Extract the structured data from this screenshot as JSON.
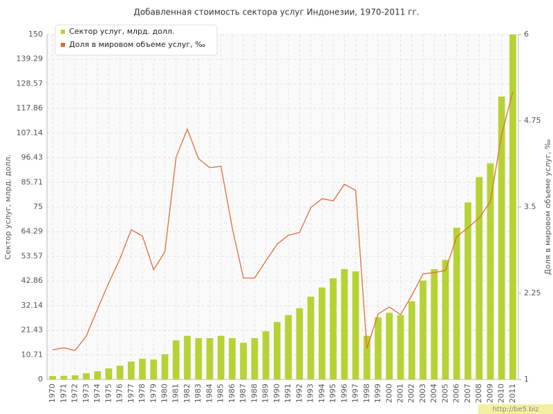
{
  "chart_data": {
    "type": "bar-line",
    "title": "Добавленная стоимость сектора услуг Индонезии, 1970-2011 гг.",
    "y_label": "Сектор услуг, млрд. долл.",
    "y2_label": "Доля в мировом объеме услуг, ‰",
    "watermark": "http://be5.biz",
    "categories": [
      "1970",
      "1971",
      "1972",
      "1973",
      "1974",
      "1975",
      "1976",
      "1977",
      "1978",
      "1979",
      "1980",
      "1981",
      "1982",
      "1983",
      "1984",
      "1985",
      "1986",
      "1987",
      "1988",
      "1989",
      "1990",
      "1991",
      "1992",
      "1993",
      "1994",
      "1995",
      "1996",
      "1997",
      "1998",
      "1999",
      "2000",
      "2001",
      "2002",
      "2003",
      "2004",
      "2005",
      "2006",
      "2007",
      "2008",
      "2009",
      "2010",
      "2011"
    ],
    "series": [
      {
        "name": "Сектор услуг, млрд. долл.",
        "type": "bar",
        "color": "#b5d334",
        "values": [
          1.5,
          1.6,
          1.8,
          2.7,
          3.6,
          4.8,
          6,
          7.8,
          9,
          8.7,
          11,
          17,
          19,
          18,
          18,
          19,
          18,
          16,
          18,
          21,
          25,
          28,
          31,
          36,
          40,
          44,
          48,
          47,
          19,
          27,
          29,
          28,
          34,
          43,
          48,
          52,
          66,
          77,
          88,
          94,
          123,
          150
        ]
      },
      {
        "name": "Доля в мировом объеме услуг, ‰",
        "type": "line",
        "axis": "y2",
        "color": "#e06a3b",
        "values": [
          1.43,
          1.46,
          1.42,
          1.63,
          2.02,
          2.4,
          2.75,
          3.17,
          3.08,
          2.59,
          2.85,
          4.22,
          4.63,
          4.2,
          4.07,
          4.09,
          3.2,
          2.47,
          2.47,
          2.72,
          2.96,
          3.09,
          3.13,
          3.49,
          3.62,
          3.59,
          3.83,
          3.74,
          1.45,
          1.95,
          2.05,
          1.94,
          2.22,
          2.53,
          2.55,
          2.58,
          3.07,
          3.2,
          3.34,
          3.58,
          4.55,
          5.17
        ]
      }
    ],
    "ylim": [
      0,
      150
    ],
    "yticks": [
      0,
      10.71,
      21.43,
      32.14,
      42.86,
      53.57,
      64.29,
      75,
      85.71,
      96.43,
      107.14,
      117.86,
      128.57,
      139.29,
      150
    ],
    "y2lim": [
      1,
      6
    ],
    "y2ticks": [
      1,
      2.25,
      3.5,
      4.75,
      6
    ],
    "grid": true,
    "legend": "top-left"
  }
}
